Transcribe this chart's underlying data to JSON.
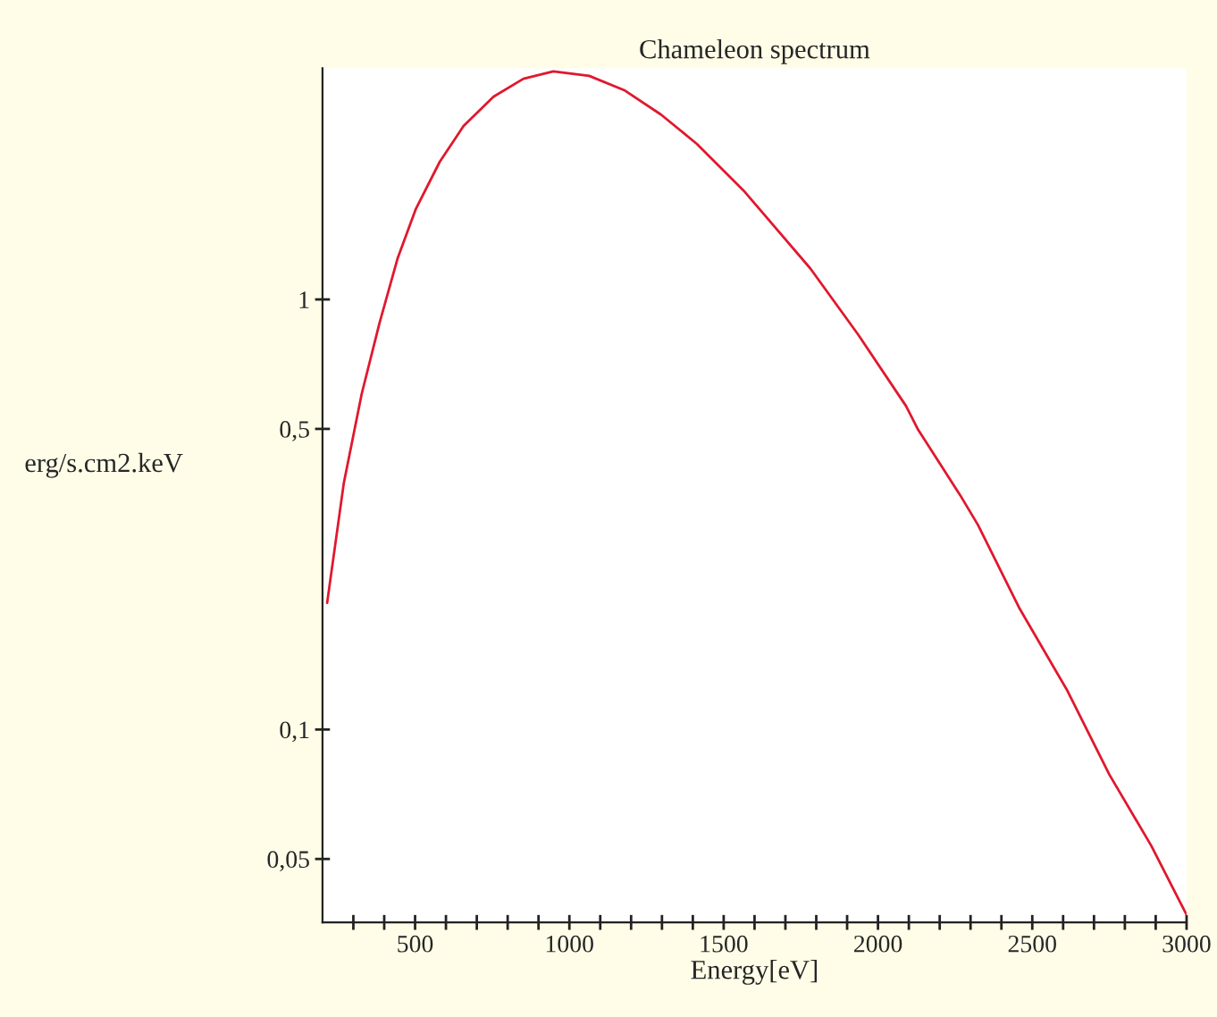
{
  "chart_data": {
    "type": "line",
    "title": "Chameleon spectrum",
    "xlabel": "Energy[eV]",
    "ylabel": "erg/s.cm2.keV",
    "log": "y",
    "grid": false,
    "legend": false,
    "marker": "none",
    "line_style": "solid",
    "xlim": [
      200,
      3000
    ],
    "ylim": [
      0.0356,
      3.45
    ],
    "xticks": [
      {
        "value": 300,
        "label": null
      },
      {
        "value": 400,
        "label": null
      },
      500,
      {
        "value": 600,
        "label": null
      },
      {
        "value": 700,
        "label": null
      },
      {
        "value": 800,
        "label": null
      },
      {
        "value": 900,
        "label": null
      },
      1000,
      {
        "value": 1100,
        "label": null
      },
      {
        "value": 1200,
        "label": null
      },
      {
        "value": 1300,
        "label": null
      },
      {
        "value": 1400,
        "label": null
      },
      1500,
      {
        "value": 1600,
        "label": null
      },
      {
        "value": 1700,
        "label": null
      },
      {
        "value": 1800,
        "label": null
      },
      {
        "value": 1900,
        "label": null
      },
      2000,
      {
        "value": 2100,
        "label": null
      },
      {
        "value": 2200,
        "label": null
      },
      {
        "value": 2300,
        "label": null
      },
      {
        "value": 2400,
        "label": null
      },
      2500,
      {
        "value": 2600,
        "label": null
      },
      {
        "value": 2700,
        "label": null
      },
      {
        "value": 2800,
        "label": null
      },
      {
        "value": 2900,
        "label": null
      },
      3000
    ],
    "yticks": [
      {
        "value": 0.05,
        "label": "0,05"
      },
      {
        "value": 0.1,
        "label": "0,1"
      },
      {
        "value": 0.5,
        "label": "0,5"
      },
      1
    ],
    "series": [
      {
        "color": "#e0182e",
        "x": [
          215,
          269,
          327,
          385,
          444,
          502,
          580,
          657,
          754,
          851,
          948,
          1064,
          1180,
          1297,
          1413,
          1529,
          1568,
          1781,
          1936,
          2091,
          2130,
          2266,
          2324,
          2459,
          2614,
          2750,
          2886,
          2999
        ],
        "values": [
          0.197,
          0.374,
          0.603,
          0.883,
          1.25,
          1.62,
          2.09,
          2.53,
          2.96,
          3.26,
          3.39,
          3.31,
          3.06,
          2.69,
          2.3,
          1.9,
          1.78,
          1.18,
          0.828,
          0.565,
          0.498,
          0.351,
          0.299,
          0.191,
          0.123,
          0.0785,
          0.0536,
          0.0372
        ]
      }
    ]
  }
}
